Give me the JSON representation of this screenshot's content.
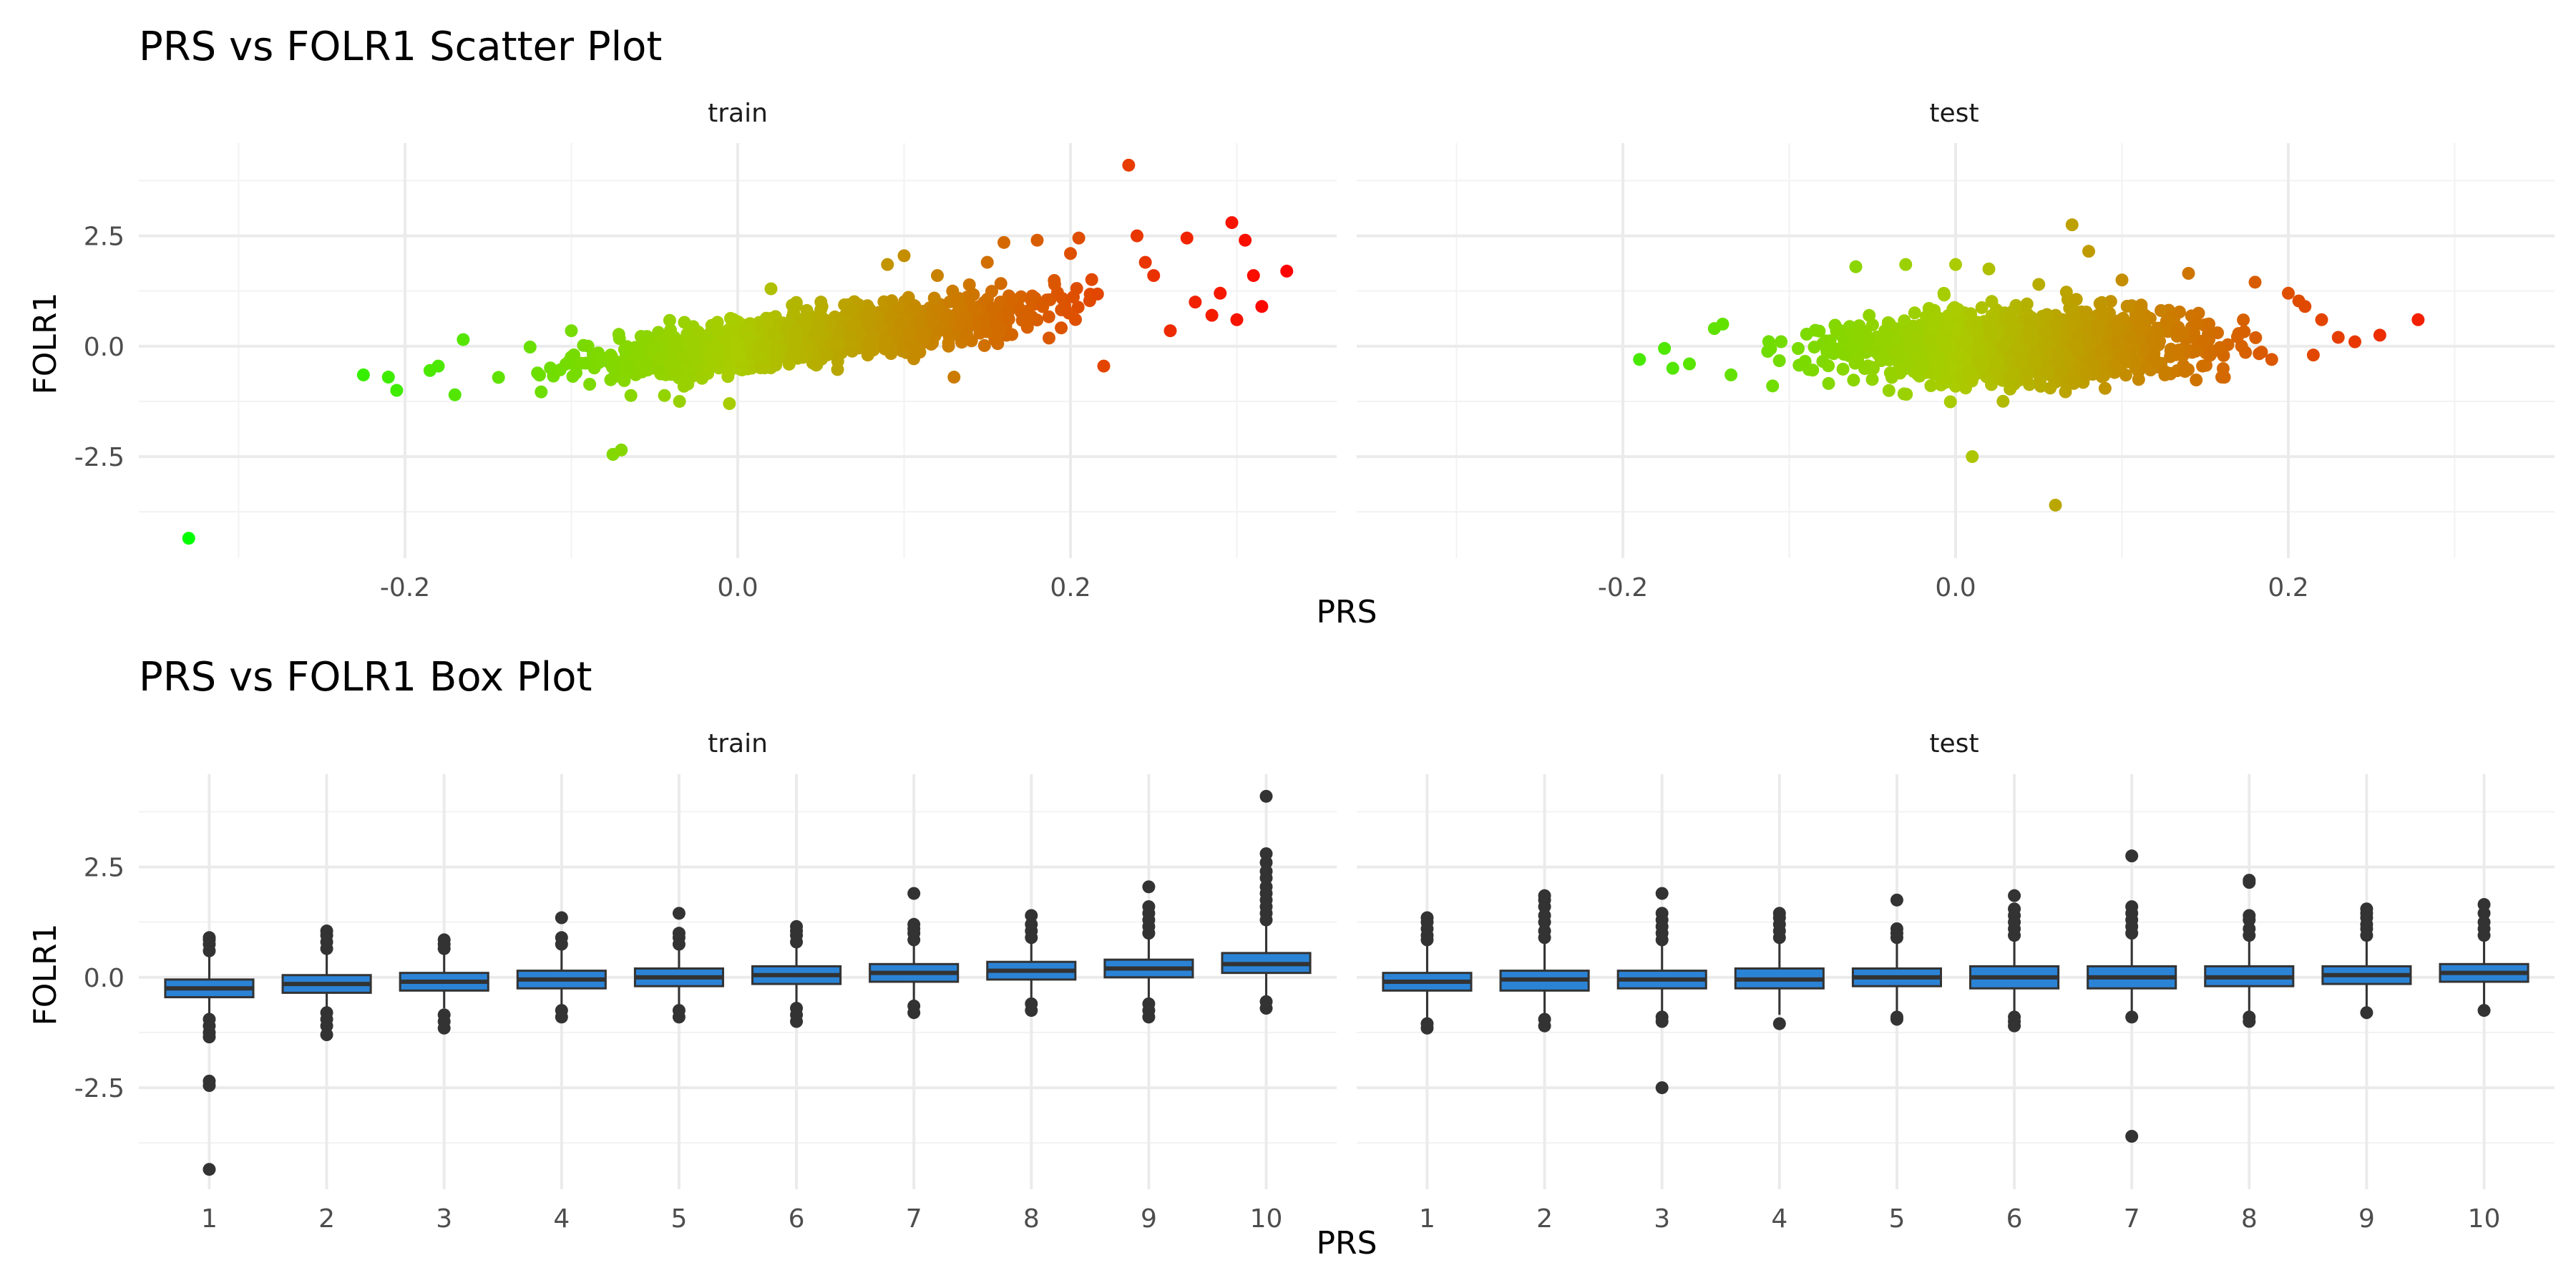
{
  "chart_data": [
    {
      "type": "scatter",
      "title": "PRS vs FOLR1 Scatter Plot",
      "xlabel": "PRS",
      "ylabel": "FOLR1",
      "xlim": [
        -0.36,
        0.36
      ],
      "ylim": [
        -4.8,
        4.6
      ],
      "x_ticks": [
        -0.2,
        0.0,
        0.2
      ],
      "x_tick_labels": [
        "-0.2",
        "0.0",
        "0.2"
      ],
      "y_ticks": [
        -2.5,
        0.0,
        2.5
      ],
      "y_tick_labels": [
        "-2.5",
        "0.0",
        "2.5"
      ],
      "grid": true,
      "color_scale": {
        "low": "#00ff00",
        "mid": "#aacc00",
        "high": "#ff0000",
        "range": [
          -0.33,
          0.33
        ]
      },
      "panels": [
        {
          "label": "train",
          "density": {
            "x_range": [
              -0.17,
              0.26
            ],
            "slope": 4.5,
            "intercept": 0.0,
            "spread": 0.35
          },
          "points": [
            [
              -0.33,
              -4.35
            ],
            [
              -0.225,
              -0.65
            ],
            [
              -0.21,
              -0.7
            ],
            [
              -0.205,
              -1.0
            ],
            [
              -0.185,
              -0.55
            ],
            [
              -0.18,
              -0.45
            ],
            [
              -0.165,
              0.15
            ],
            [
              -0.17,
              -1.1
            ],
            [
              -0.075,
              -2.45
            ],
            [
              -0.07,
              -2.35
            ],
            [
              -0.035,
              -1.25
            ],
            [
              -0.005,
              -1.3
            ],
            [
              0.09,
              1.85
            ],
            [
              0.1,
              2.05
            ],
            [
              0.12,
              1.6
            ],
            [
              0.16,
              2.35
            ],
            [
              0.18,
              2.4
            ],
            [
              0.2,
              2.1
            ],
            [
              0.205,
              2.45
            ],
            [
              0.235,
              4.1
            ],
            [
              0.24,
              2.5
            ],
            [
              0.245,
              1.9
            ],
            [
              0.25,
              1.6
            ],
            [
              0.27,
              2.45
            ],
            [
              0.29,
              1.2
            ],
            [
              0.297,
              2.8
            ],
            [
              0.305,
              2.4
            ],
            [
              0.31,
              1.6
            ],
            [
              0.315,
              0.9
            ],
            [
              0.33,
              1.7
            ],
            [
              0.275,
              1.0
            ],
            [
              0.285,
              0.7
            ],
            [
              0.26,
              0.35
            ],
            [
              0.3,
              0.6
            ],
            [
              0.22,
              -0.45
            ],
            [
              0.15,
              1.9
            ],
            [
              0.05,
              1.0
            ],
            [
              0.02,
              1.3
            ],
            [
              -0.1,
              0.35
            ],
            [
              0.13,
              -0.7
            ]
          ]
        },
        {
          "label": "test",
          "density": {
            "x_range": [
              -0.14,
              0.22
            ],
            "slope": 0.5,
            "intercept": 0.0,
            "spread": 0.5
          },
          "points": [
            [
              -0.19,
              -0.3
            ],
            [
              -0.175,
              -0.05
            ],
            [
              -0.17,
              -0.5
            ],
            [
              -0.16,
              -0.4
            ],
            [
              -0.145,
              0.4
            ],
            [
              -0.14,
              0.5
            ],
            [
              -0.135,
              -0.65
            ],
            [
              0.01,
              -2.5
            ],
            [
              0.06,
              -3.6
            ],
            [
              0.07,
              2.75
            ],
            [
              0.08,
              2.15
            ],
            [
              -0.06,
              1.8
            ],
            [
              -0.03,
              1.85
            ],
            [
              0.0,
              1.85
            ],
            [
              0.02,
              1.75
            ],
            [
              0.05,
              1.4
            ],
            [
              0.1,
              1.5
            ],
            [
              0.14,
              1.65
            ],
            [
              0.18,
              1.45
            ],
            [
              0.2,
              1.2
            ],
            [
              0.21,
              0.9
            ],
            [
              0.22,
              0.6
            ],
            [
              0.23,
              0.2
            ],
            [
              0.24,
              0.1
            ],
            [
              0.255,
              0.25
            ],
            [
              0.278,
              0.6
            ],
            [
              -0.11,
              -0.9
            ],
            [
              0.16,
              -0.7
            ],
            [
              0.19,
              -0.3
            ],
            [
              0.215,
              -0.2
            ]
          ]
        }
      ]
    },
    {
      "type": "box",
      "title": "PRS vs FOLR1 Box Plot",
      "xlabel": "PRS",
      "ylabel": "FOLR1",
      "categories": [
        "1",
        "2",
        "3",
        "4",
        "5",
        "6",
        "7",
        "8",
        "9",
        "10"
      ],
      "ylim": [
        -4.8,
        4.6
      ],
      "y_ticks": [
        -2.5,
        0.0,
        2.5
      ],
      "y_tick_labels": [
        "-2.5",
        "0.0",
        "2.5"
      ],
      "grid": true,
      "box_color": "#2b83d6",
      "panels": [
        {
          "label": "train",
          "boxes": [
            {
              "q1": -0.45,
              "median": -0.25,
              "q3": -0.05,
              "lo": -0.85,
              "hi": 0.55,
              "outliers": [
                0.6,
                0.75,
                0.85,
                0.9,
                -0.95,
                -1.1,
                -1.25,
                -1.35,
                -2.35,
                -2.45,
                -4.35
              ]
            },
            {
              "q1": -0.35,
              "median": -0.15,
              "q3": 0.05,
              "lo": -0.75,
              "hi": 0.6,
              "outliers": [
                0.65,
                0.8,
                0.95,
                1.05,
                -0.8,
                -0.95,
                -1.1,
                -1.3
              ]
            },
            {
              "q1": -0.3,
              "median": -0.1,
              "q3": 0.1,
              "lo": -0.7,
              "hi": 0.6,
              "outliers": [
                0.65,
                0.75,
                0.85,
                -0.85,
                -1.0,
                -1.15
              ]
            },
            {
              "q1": -0.25,
              "median": -0.05,
              "q3": 0.15,
              "lo": -0.7,
              "hi": 0.7,
              "outliers": [
                0.75,
                0.9,
                1.35,
                -0.75,
                -0.9
              ]
            },
            {
              "q1": -0.2,
              "median": 0.0,
              "q3": 0.2,
              "lo": -0.7,
              "hi": 0.7,
              "outliers": [
                0.75,
                0.9,
                1.0,
                1.45,
                -0.75,
                -0.9
              ]
            },
            {
              "q1": -0.15,
              "median": 0.05,
              "q3": 0.25,
              "lo": -0.65,
              "hi": 0.75,
              "outliers": [
                0.8,
                0.95,
                1.05,
                1.15,
                -0.7,
                -0.85,
                -1.0
              ]
            },
            {
              "q1": -0.1,
              "median": 0.1,
              "q3": 0.3,
              "lo": -0.6,
              "hi": 0.8,
              "outliers": [
                0.85,
                1.0,
                1.1,
                1.2,
                1.9,
                -0.65,
                -0.8
              ]
            },
            {
              "q1": -0.05,
              "median": 0.15,
              "q3": 0.35,
              "lo": -0.55,
              "hi": 0.85,
              "outliers": [
                0.9,
                1.05,
                1.2,
                1.4,
                -0.6,
                -0.75
              ]
            },
            {
              "q1": 0.0,
              "median": 0.2,
              "q3": 0.4,
              "lo": -0.55,
              "hi": 0.95,
              "outliers": [
                1.0,
                1.15,
                1.3,
                1.45,
                1.6,
                2.05,
                -0.6,
                -0.75,
                -0.9
              ]
            },
            {
              "q1": 0.1,
              "median": 0.3,
              "q3": 0.55,
              "lo": -0.45,
              "hi": 1.2,
              "outliers": [
                1.3,
                1.45,
                1.6,
                1.75,
                1.9,
                2.05,
                2.25,
                2.4,
                2.6,
                2.8,
                4.1,
                -0.55,
                -0.7
              ]
            }
          ]
        },
        {
          "label": "test",
          "boxes": [
            {
              "q1": -0.3,
              "median": -0.1,
              "q3": 0.1,
              "lo": -0.95,
              "hi": 0.75,
              "outliers": [
                0.85,
                0.95,
                1.1,
                1.25,
                1.35,
                -1.05,
                -1.15
              ]
            },
            {
              "q1": -0.3,
              "median": -0.05,
              "q3": 0.15,
              "lo": -0.9,
              "hi": 0.8,
              "outliers": [
                0.9,
                1.05,
                1.25,
                1.4,
                1.6,
                1.75,
                1.85,
                -0.95,
                -1.1
              ]
            },
            {
              "q1": -0.25,
              "median": -0.05,
              "q3": 0.15,
              "lo": -0.85,
              "hi": 0.75,
              "outliers": [
                0.85,
                1.0,
                1.15,
                1.3,
                1.45,
                1.9,
                -0.9,
                -1.0,
                -2.5
              ]
            },
            {
              "q1": -0.25,
              "median": -0.05,
              "q3": 0.2,
              "lo": -0.85,
              "hi": 0.8,
              "outliers": [
                0.9,
                1.05,
                1.2,
                1.35,
                1.45,
                -1.05
              ]
            },
            {
              "q1": -0.2,
              "median": 0.0,
              "q3": 0.2,
              "lo": -0.85,
              "hi": 0.8,
              "outliers": [
                0.9,
                1.0,
                1.1,
                1.75,
                -0.9,
                -0.95
              ]
            },
            {
              "q1": -0.25,
              "median": 0.0,
              "q3": 0.25,
              "lo": -0.85,
              "hi": 0.85,
              "outliers": [
                0.95,
                1.1,
                1.25,
                1.4,
                1.55,
                1.85,
                -0.9,
                -1.0,
                -1.1
              ]
            },
            {
              "q1": -0.25,
              "median": 0.0,
              "q3": 0.25,
              "lo": -0.85,
              "hi": 0.9,
              "outliers": [
                1.0,
                1.15,
                1.3,
                1.45,
                1.6,
                2.75,
                -0.9,
                -3.6
              ]
            },
            {
              "q1": -0.2,
              "median": 0.0,
              "q3": 0.25,
              "lo": -0.85,
              "hi": 0.85,
              "outliers": [
                0.95,
                1.1,
                1.3,
                1.4,
                2.15,
                2.2,
                -0.9,
                -1.0
              ]
            },
            {
              "q1": -0.15,
              "median": 0.05,
              "q3": 0.25,
              "lo": -0.75,
              "hi": 0.85,
              "outliers": [
                0.95,
                1.1,
                1.2,
                1.35,
                1.45,
                1.55,
                -0.8
              ]
            },
            {
              "q1": -0.1,
              "median": 0.1,
              "q3": 0.3,
              "lo": -0.65,
              "hi": 0.85,
              "outliers": [
                0.95,
                1.1,
                1.25,
                1.45,
                1.65,
                -0.75
              ]
            }
          ]
        }
      ]
    }
  ]
}
